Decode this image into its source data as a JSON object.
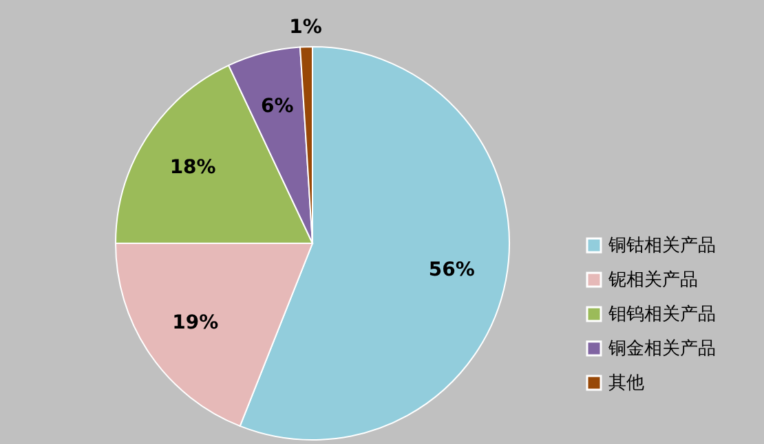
{
  "chart_data": {
    "type": "pie",
    "categories": [
      "铜钴相关产品",
      "铌相关产品",
      "钼钨相关产品",
      "铜金相关产品",
      "其他"
    ],
    "values": [
      56,
      19,
      18,
      6,
      1
    ],
    "colors": [
      "#92cddc",
      "#e6b9b8",
      "#9bbb59",
      "#8064a2",
      "#984807"
    ],
    "value_labels": [
      "56%",
      "19%",
      "18%",
      "6%",
      "1%"
    ],
    "legend": "right"
  }
}
